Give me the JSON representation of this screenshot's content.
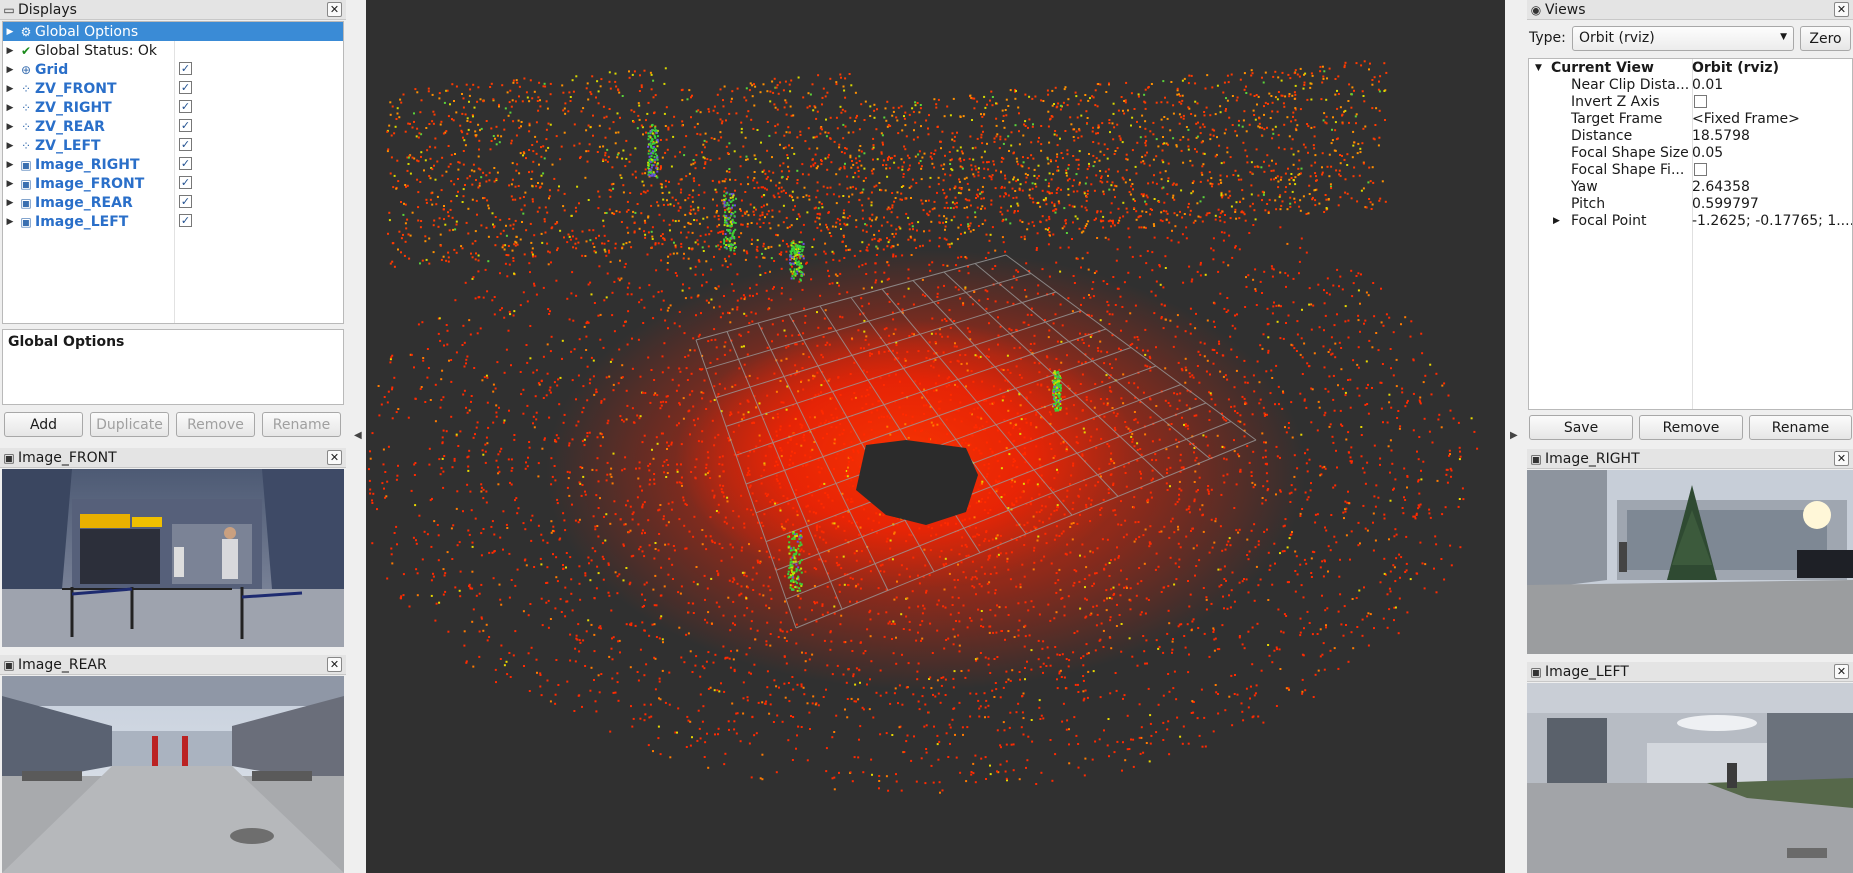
{
  "displays": {
    "title": "Displays",
    "items": [
      {
        "label": "Global Options",
        "icon": "gear-icon",
        "selected": true,
        "checkbox": false,
        "blue": false
      },
      {
        "label": "Global Status: Ok",
        "icon": "check-icon",
        "selected": false,
        "checkbox": false,
        "blue": false
      },
      {
        "label": "Grid",
        "icon": "grid-icon",
        "selected": false,
        "checkbox": true,
        "blue": true
      },
      {
        "label": "ZV_FRONT",
        "icon": "pointcloud-icon",
        "selected": false,
        "checkbox": true,
        "blue": true
      },
      {
        "label": "ZV_RIGHT",
        "icon": "pointcloud-icon",
        "selected": false,
        "checkbox": true,
        "blue": true
      },
      {
        "label": "ZV_REAR",
        "icon": "pointcloud-icon",
        "selected": false,
        "checkbox": true,
        "blue": true
      },
      {
        "label": "ZV_LEFT",
        "icon": "pointcloud-icon",
        "selected": false,
        "checkbox": true,
        "blue": true
      },
      {
        "label": "Image_RIGHT",
        "icon": "image-icon",
        "selected": false,
        "checkbox": true,
        "blue": true
      },
      {
        "label": "Image_FRONT",
        "icon": "image-icon",
        "selected": false,
        "checkbox": true,
        "blue": true
      },
      {
        "label": "Image_REAR",
        "icon": "image-icon",
        "selected": false,
        "checkbox": true,
        "blue": true
      },
      {
        "label": "Image_LEFT",
        "icon": "image-icon",
        "selected": false,
        "checkbox": true,
        "blue": true
      }
    ],
    "description_title": "Global Options",
    "buttons": {
      "add": "Add",
      "duplicate": "Duplicate",
      "remove": "Remove",
      "rename": "Rename"
    }
  },
  "image_front": {
    "title": "Image_FRONT"
  },
  "image_rear": {
    "title": "Image_REAR"
  },
  "image_right": {
    "title": "Image_RIGHT"
  },
  "image_left": {
    "title": "Image_LEFT"
  },
  "views": {
    "title": "Views",
    "type_label": "Type:",
    "type_value": "Orbit (rviz)",
    "zero_label": "Zero",
    "current_view": {
      "key": "Current View",
      "value": "Orbit (rviz)"
    },
    "props": [
      {
        "key": "Near Clip Dista...",
        "value": "0.01",
        "checkbox": false
      },
      {
        "key": "Invert Z Axis",
        "value": "",
        "checkbox": true
      },
      {
        "key": "Target Frame",
        "value": "<Fixed Frame>",
        "checkbox": false
      },
      {
        "key": "Distance",
        "value": "18.5798",
        "checkbox": false
      },
      {
        "key": "Focal Shape Size",
        "value": "0.05",
        "checkbox": false
      },
      {
        "key": "Focal Shape Fi...",
        "value": "",
        "checkbox": true
      },
      {
        "key": "Yaw",
        "value": "2.64358",
        "checkbox": false
      },
      {
        "key": "Pitch",
        "value": "0.599797",
        "checkbox": false
      },
      {
        "key": "Focal Point",
        "value": "-1.2625; -0.17765; 1....",
        "checkbox": false,
        "expandable": true
      }
    ],
    "buttons": {
      "save": "Save",
      "remove": "Remove",
      "rename": "Rename"
    }
  },
  "colors": {
    "selection": "#3a8bd6",
    "link_blue": "#2a6fc9",
    "viewport_bg": "#303030",
    "cloud_red": "#ff2a00",
    "cloud_yellow": "#e8d800",
    "cloud_green": "#3ad23a"
  }
}
